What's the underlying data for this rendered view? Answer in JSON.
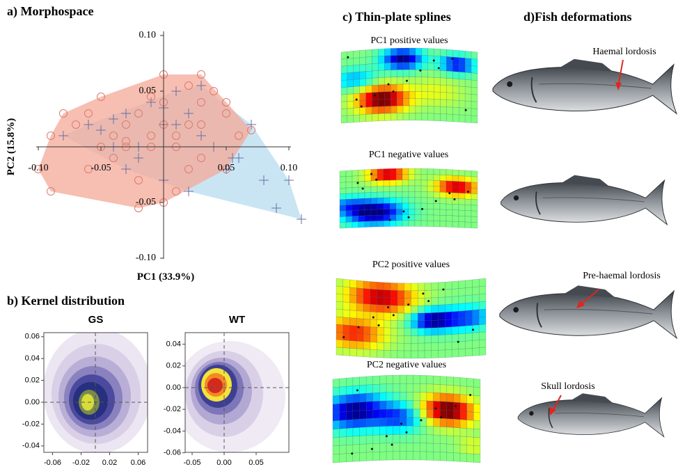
{
  "panel_a": {
    "title": "a) Morphospace",
    "xlabel": "PC1 (33.9%)",
    "ylabel": "PC2 (15.8%)",
    "xticks": [
      {
        "value": -0.1,
        "label": "-0.10"
      },
      {
        "value": -0.05,
        "label": "-0.05"
      },
      {
        "value": 0.05,
        "label": "0.05"
      },
      {
        "value": 0.1,
        "label": "0.10"
      }
    ],
    "yticks": [
      {
        "value": 0.1,
        "label": "0.10"
      },
      {
        "value": 0.05,
        "label": "0.05"
      },
      {
        "value": -0.05,
        "label": "-0.05"
      },
      {
        "value": -0.1,
        "label": "-0.10"
      }
    ],
    "groups": [
      {
        "marker": "cross",
        "color": "#6b6fa0",
        "hull_color": "#bfe0f2",
        "x": [
          -0.08,
          -0.06,
          -0.04,
          -0.03,
          -0.02,
          -0.01,
          0,
          0.01,
          0.02,
          0.03,
          0.04,
          0.06,
          0.08,
          0.09,
          0.1,
          0.11,
          0.07,
          0.05,
          -0.05,
          -0.02,
          0,
          0.02,
          0.03,
          0.055,
          -0.03,
          0.01,
          0,
          -0.04
        ],
        "y": [
          0.01,
          0.02,
          0,
          0.03,
          -0.01,
          0.04,
          0.02,
          0.05,
          0.03,
          0.055,
          0,
          -0.01,
          -0.03,
          -0.055,
          -0.03,
          -0.065,
          0.02,
          -0.02,
          0.015,
          0,
          -0.03,
          -0.04,
          0.01,
          -0.01,
          -0.02,
          0.02,
          0.035,
          0.025
        ]
      },
      {
        "marker": "circle",
        "color": "#e07a6a",
        "hull_color": "#f4a898",
        "x": [
          -0.07,
          -0.09,
          -0.06,
          -0.05,
          -0.04,
          -0.03,
          -0.02,
          -0.01,
          0,
          0.01,
          0.02,
          0.03,
          0.04,
          0.05,
          0.06,
          0.07,
          -0.08,
          -0.06,
          -0.04,
          -0.03,
          -0.02,
          -0.01,
          0,
          0.01,
          0.02,
          0.03,
          -0.05,
          -0.03,
          0,
          0.02,
          0.05,
          0.03,
          -0.1,
          -0.09,
          0.05,
          -0.02,
          0.01,
          0.03,
          0,
          -0.01
        ],
        "y": [
          0.02,
          -0.04,
          0.03,
          0,
          0.01,
          0.02,
          0.03,
          0,
          0.04,
          0.01,
          -0.02,
          0.02,
          0.05,
          0.03,
          0.01,
          0.015,
          0.03,
          -0.02,
          -0.01,
          0,
          -0.03,
          0.01,
          -0.05,
          0,
          0.02,
          -0.01,
          0.045,
          0.005,
          0.065,
          0.055,
          -0.02,
          0.065,
          -0.02,
          0.01,
          0.04,
          -0.055,
          -0.04,
          0.04,
          0.02,
          0.045
        ]
      }
    ]
  },
  "panel_b": {
    "title": "b) Kernel distribution",
    "plots": [
      {
        "title": "GS",
        "xticks": [
          {
            "value": -0.06,
            "label": "-0.06"
          },
          {
            "value": -0.02,
            "label": "-0.02"
          },
          {
            "value": 0.02,
            "label": "0.02"
          },
          {
            "value": 0.06,
            "label": "0.06"
          }
        ],
        "yticks": [
          {
            "value": 0.06,
            "label": "0.06"
          },
          {
            "value": 0.04,
            "label": "0.04"
          },
          {
            "value": 0.02,
            "label": "0.02"
          },
          {
            "value": 0,
            "label": "0.00"
          },
          {
            "value": -0.02,
            "label": "-0.02"
          },
          {
            "value": -0.04,
            "label": "-0.04"
          }
        ]
      },
      {
        "title": "WT",
        "xticks": [
          {
            "value": -0.05,
            "label": "-0.05"
          },
          {
            "value": 0,
            "label": "0.00"
          },
          {
            "value": 0.05,
            "label": "0.05"
          }
        ],
        "yticks": [
          {
            "value": 0.04,
            "label": "0.04"
          },
          {
            "value": 0.02,
            "label": "0.02"
          },
          {
            "value": 0,
            "label": "0.00"
          },
          {
            "value": -0.02,
            "label": "-0.02"
          },
          {
            "value": -0.04,
            "label": "-0.04"
          },
          {
            "value": -0.06,
            "label": "-0.06"
          }
        ]
      }
    ]
  },
  "panel_c": {
    "title": "c) Thin-plate splines",
    "grids": [
      "PC1 positive values",
      "PC1 negative values",
      "PC2 positive values",
      "PC2 negative values"
    ]
  },
  "panel_d": {
    "title": "d)Fish deformations",
    "annotations": [
      "Haemal lordosis",
      "Pre-haemal lordosis",
      "Skull lordosis"
    ]
  }
}
